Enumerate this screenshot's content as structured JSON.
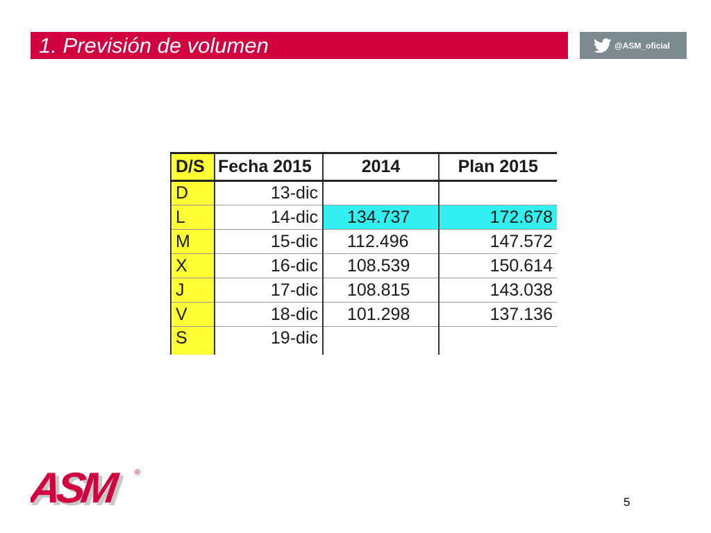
{
  "slide": {
    "title": "1. Previsión de volumen",
    "twitter_handle": "@ASM_oficial",
    "page_number": "5",
    "logo_text": "ASM",
    "registered_mark": "®"
  },
  "colors": {
    "title_bar": "#d1003f",
    "twitter_box": "#7b8a8f",
    "day_column": "#ffff33",
    "highlight_row": "#33f0f0"
  },
  "icons": {
    "twitter": "twitter-bird-icon"
  },
  "table": {
    "headers": [
      "D/S",
      "Fecha 2015",
      "2014",
      "Plan 2015"
    ],
    "rows": [
      {
        "ds": "D",
        "fecha": "13-dic",
        "y2014": "",
        "plan2015": "",
        "highlight": false
      },
      {
        "ds": "L",
        "fecha": "14-dic",
        "y2014": "134.737",
        "plan2015": "172.678",
        "highlight": true
      },
      {
        "ds": "M",
        "fecha": "15-dic",
        "y2014": "112.496",
        "plan2015": "147.572",
        "highlight": false
      },
      {
        "ds": "X",
        "fecha": "16-dic",
        "y2014": "108.539",
        "plan2015": "150.614",
        "highlight": false
      },
      {
        "ds": "J",
        "fecha": "17-dic",
        "y2014": "108.815",
        "plan2015": "143.038",
        "highlight": false
      },
      {
        "ds": "V",
        "fecha": "18-dic",
        "y2014": "101.298",
        "plan2015": "137.136",
        "highlight": false
      },
      {
        "ds": "S",
        "fecha": "19-dic",
        "y2014": "",
        "plan2015": "",
        "highlight": false
      }
    ]
  }
}
